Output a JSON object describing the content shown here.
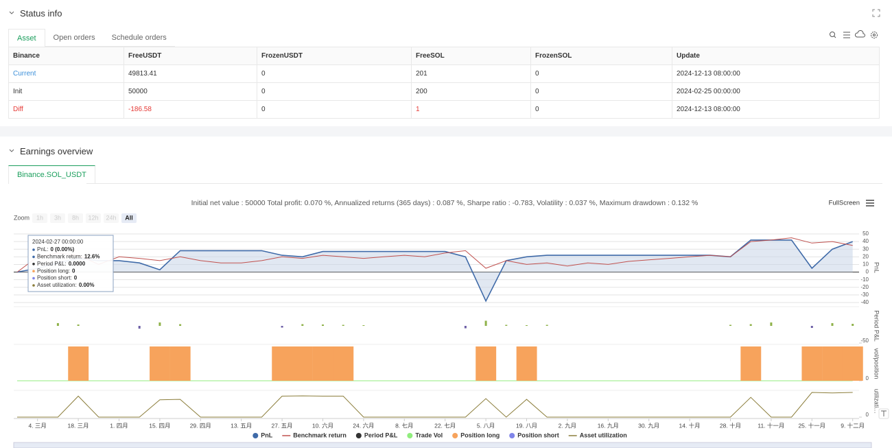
{
  "status": {
    "title": "Status info",
    "tabs": [
      "Asset",
      "Open orders",
      "Schedule orders"
    ]
  },
  "table": {
    "columns": [
      "Binance",
      "FreeUSDT",
      "FrozenUSDT",
      "FreeSOL",
      "FrozenSOL",
      "Update"
    ],
    "rows": [
      [
        "Current",
        "49813.41",
        "0",
        "201",
        "0",
        "2024-12-13 08:00:00"
      ],
      [
        "Init",
        "50000",
        "0",
        "200",
        "0",
        "2024-02-25 00:00:00"
      ],
      [
        "Diff",
        "-186.58",
        "0",
        "1",
        "0",
        "2024-12-13 08:00:00"
      ]
    ]
  },
  "earnings": {
    "title": "Earnings overview",
    "tab": "Binance.SOL_USDT",
    "summary": "Initial net value : 50000 Total profit: 0.070 %, Annualized returns (365 days) : 0.087 %, Sharpe ratio : -0.783, Volatility : 0.037 %, Maximum drawdown : 0.132 %",
    "fullscreen": "FullScreen",
    "zoom": {
      "label": "Zoom",
      "buttons": [
        "1h",
        "3h",
        "8h",
        "12h",
        "24h",
        "All"
      ]
    },
    "tooltip": {
      "date": "2024-02-27 00:00:00",
      "items": [
        {
          "label": "PnL:",
          "value": "0 (0.00%)"
        },
        {
          "label": "Benchmark return:",
          "value": "12.6%"
        },
        {
          "label": "Period P&L:",
          "value": "0.0000"
        },
        {
          "label": "Position long:",
          "value": "0"
        },
        {
          "label": "Position short:",
          "value": "0"
        },
        {
          "label": "Asset utilization:",
          "value": "0.00%"
        }
      ]
    }
  },
  "chart_data": {
    "type": "line",
    "categories": [
      null,
      "4. 三月",
      null,
      "18. 三月",
      null,
      "1. 四月",
      null,
      "15. 四月",
      null,
      "29. 四月",
      null,
      "13. 五月",
      null,
      "27. 五月",
      null,
      "10. 六月",
      null,
      "24. 六月",
      null,
      "8. 七月",
      null,
      "22. 七月",
      null,
      "5. 八月",
      null,
      "19. 八月",
      null,
      "2. 九月",
      null,
      "16. 九月",
      null,
      "30. 九月",
      null,
      "14. 十月",
      null,
      "28. 十月",
      null,
      "11. 十一月",
      null,
      "25. 十一月",
      null,
      "9. 十二月"
    ],
    "panes": [
      {
        "type": "line",
        "y_label": "PnL",
        "ylim": [
          -40,
          50
        ],
        "yticks": [
          50,
          40,
          30,
          20,
          10,
          0,
          -10,
          -20,
          -30,
          -40
        ],
        "grid": true,
        "series": [
          {
            "name": "PnL",
            "color": "#3f6aa8",
            "symbol": "circle",
            "area": true,
            "values": [
              0,
              5,
              12,
              18,
              15,
              15,
              12,
              3,
              28,
              28,
              28,
              28,
              28,
              22,
              20,
              27,
              27,
              27,
              27,
              27,
              27,
              27,
              20,
              -38,
              15,
              20,
              22,
              22,
              22,
              22,
              22,
              22,
              22,
              22,
              22,
              20,
              42,
              42,
              42,
              5,
              30,
              40
            ]
          },
          {
            "name": "Benchmark return",
            "color": "#c0504d",
            "symbol": "line",
            "values": [
              0,
              20,
              25,
              22,
              10,
              20,
              18,
              15,
              20,
              15,
              12,
              12,
              15,
              20,
              18,
              22,
              20,
              18,
              20,
              22,
              20,
              25,
              28,
              5,
              15,
              10,
              12,
              8,
              12,
              10,
              14,
              16,
              18,
              20,
              22,
              20,
              40,
              42,
              45,
              38,
              40,
              35
            ]
          }
        ]
      },
      {
        "type": "bar",
        "y_label": "Period P&L",
        "ylim": [
          -50,
          50
        ],
        "yticks": [
          -50
        ],
        "series": [
          {
            "name": "Period P&L",
            "color": "#333333",
            "symbol": "circle",
            "up_color": "#8fb24a",
            "down_color": "#6d5fa6",
            "values": [
              null,
              null,
              8,
              4,
              null,
              null,
              -8,
              10,
              5,
              null,
              null,
              null,
              null,
              -5,
              5,
              4,
              3,
              2,
              null,
              null,
              null,
              null,
              -7,
              15,
              3,
              2,
              3,
              null,
              null,
              null,
              null,
              null,
              null,
              null,
              null,
              3,
              5,
              10,
              null,
              -6,
              8,
              6
            ]
          }
        ]
      },
      {
        "type": "area",
        "y_label": "vol/position",
        "ylim": [
          0,
          1
        ],
        "yticks": [
          0
        ],
        "series": [
          {
            "name": "Trade Vol",
            "color": "#90ed7d",
            "symbol": "circle",
            "style": "line",
            "values": [
              0,
              0,
              0,
              0,
              0,
              0,
              0,
              0,
              0,
              0,
              0,
              0,
              0,
              0,
              0,
              0,
              0,
              0,
              0,
              0,
              0,
              0,
              0,
              0,
              0,
              0,
              0,
              0,
              0,
              0,
              0,
              0,
              0,
              0,
              0,
              0,
              0,
              0,
              0,
              0,
              0,
              0
            ]
          },
          {
            "name": "Position long",
            "color": "#f7a35c",
            "symbol": "circle",
            "style": "block",
            "values": [
              0,
              0,
              0,
              1,
              0,
              0,
              0,
              1,
              1,
              0,
              0,
              0,
              0,
              1,
              1,
              1,
              1,
              0,
              0,
              0,
              0,
              0,
              0,
              1,
              0,
              1,
              0,
              0,
              0,
              0,
              0,
              0,
              0,
              0,
              0,
              0,
              1,
              0,
              0,
              1,
              1,
              1
            ]
          },
          {
            "name": "Position short",
            "color": "#8085e9",
            "symbol": "circle",
            "style": "block",
            "values": [
              0,
              0,
              0,
              0,
              0,
              0,
              0,
              0,
              0,
              0,
              0,
              0,
              0,
              0,
              0,
              0,
              0,
              0,
              0,
              0,
              0,
              0,
              0,
              0,
              0,
              0,
              0,
              0,
              0,
              0,
              0,
              0,
              0,
              0,
              0,
              0,
              0,
              0,
              0,
              0,
              0,
              0
            ]
          }
        ]
      },
      {
        "type": "line",
        "y_label": "utilizati…",
        "ylim": [
          0,
          1
        ],
        "yticks": [
          0
        ],
        "series": [
          {
            "name": "Asset utilization",
            "color": "#8b7d3a",
            "symbol": "line",
            "values": [
              0,
              0,
              0,
              0.85,
              0,
              0,
              0,
              0.7,
              0.72,
              0,
              0,
              0,
              0,
              0.85,
              0.86,
              0.85,
              0.85,
              0,
              0,
              0,
              0,
              0,
              0,
              0.75,
              0,
              0.72,
              0,
              0,
              0,
              0,
              0,
              0,
              0,
              0,
              0,
              0,
              0.8,
              0,
              0,
              1,
              0.98,
              1
            ]
          }
        ]
      }
    ]
  }
}
